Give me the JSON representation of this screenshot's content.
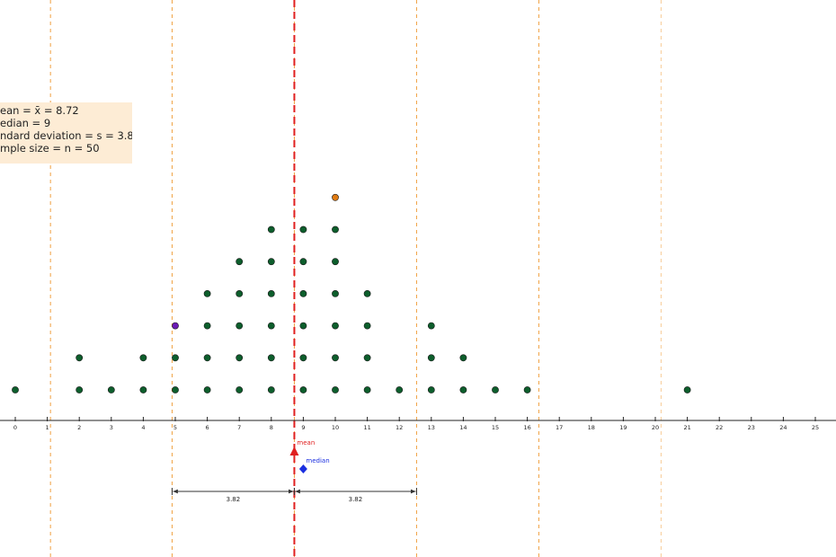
{
  "stats_box": {
    "lines": [
      "ean = x̄ = 8.72",
      "edian = 9",
      "ndard deviation = s = 3.82",
      "mple size = n = 50"
    ]
  },
  "chart_data": {
    "type": "scatter",
    "subtype": "dot plot",
    "title": "",
    "xlabel": "",
    "ylabel": "",
    "xlim": [
      -0.4,
      25.7
    ],
    "x_ticks": [
      0,
      1,
      2,
      3,
      4,
      5,
      6,
      7,
      8,
      9,
      10,
      11,
      12,
      13,
      14,
      15,
      16,
      17,
      18,
      19,
      20,
      21,
      22,
      23,
      24,
      25
    ],
    "grid": false,
    "mean": 8.72,
    "median": 9,
    "standard_deviation": 3.82,
    "sample_size": 50,
    "mean_marker_label": "mean",
    "median_marker_label": "median",
    "sd_bracket_labels": [
      "3.82",
      "3.82"
    ],
    "sd_lines_x": [
      1.1,
      4.9,
      8.72,
      12.54,
      16.36,
      20.18
    ],
    "colors": {
      "dot": "#0d5e2c",
      "highlight_orange": "#e07b12",
      "highlight_purple": "#6a1bb5",
      "mean": "#e02020",
      "median": "#1a2ee0",
      "sd_line": "#f0a040"
    },
    "points": [
      {
        "x": 0,
        "count": 1
      },
      {
        "x": 2,
        "count": 2
      },
      {
        "x": 3,
        "count": 1
      },
      {
        "x": 4,
        "count": 2
      },
      {
        "x": 5,
        "count": 3,
        "highlight_top": "purple"
      },
      {
        "x": 6,
        "count": 4
      },
      {
        "x": 7,
        "count": 5
      },
      {
        "x": 8,
        "count": 6
      },
      {
        "x": 9,
        "count": 6
      },
      {
        "x": 10,
        "count": 7,
        "highlight_top": "orange"
      },
      {
        "x": 11,
        "count": 4
      },
      {
        "x": 12,
        "count": 1
      },
      {
        "x": 13,
        "count": 3
      },
      {
        "x": 14,
        "count": 2
      },
      {
        "x": 15,
        "count": 1
      },
      {
        "x": 16,
        "count": 1
      },
      {
        "x": 21,
        "count": 1
      }
    ]
  }
}
